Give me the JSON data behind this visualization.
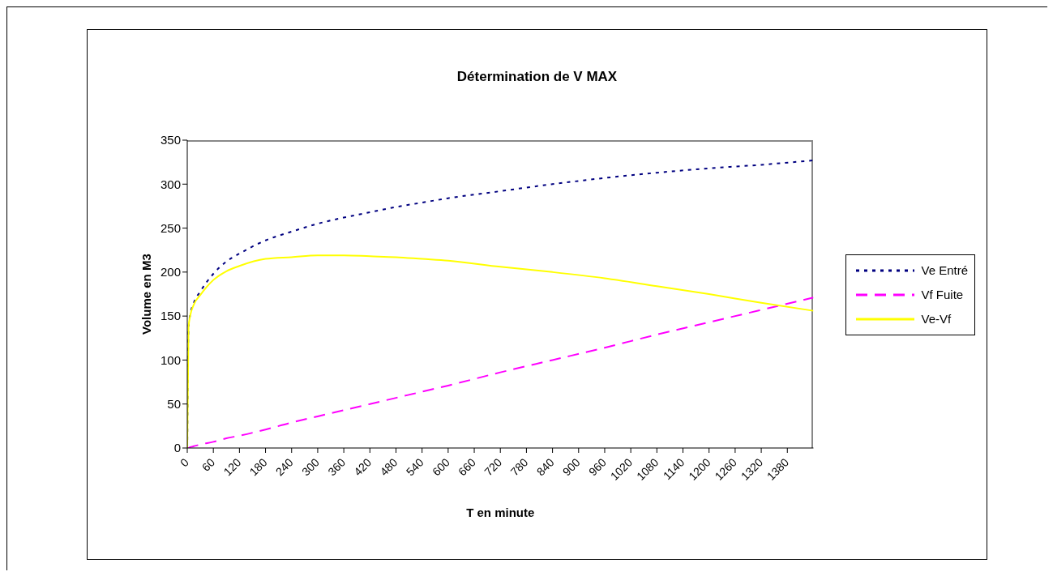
{
  "chart_data": {
    "type": "line",
    "title": "Détermination de V MAX",
    "xlabel": "T en minute",
    "ylabel": "Volume en M3",
    "x": [
      0,
      3,
      7,
      15,
      30,
      60,
      90,
      120,
      180,
      240,
      300,
      360,
      420,
      480,
      540,
      600,
      720,
      840,
      960,
      1080,
      1200,
      1320,
      1440
    ],
    "series": [
      {
        "name": "Ve Entré",
        "color": "#000080",
        "line_style": "dotted",
        "values": [
          0,
          138,
          152,
          165,
          178,
          198,
          212,
          221,
          236,
          246,
          255,
          262,
          268,
          274,
          279,
          284,
          292,
          300,
          307,
          313,
          318,
          322,
          327
        ]
      },
      {
        "name": "Vf Fuite",
        "color": "#ff00ff",
        "line_style": "dashed",
        "values": [
          0,
          0,
          1,
          2,
          4,
          7,
          11,
          14,
          21,
          29,
          36,
          43,
          50,
          57,
          64,
          71,
          86,
          100,
          114,
          129,
          143,
          157,
          171
        ]
      },
      {
        "name": "Ve-Vf",
        "color": "#ffff00",
        "line_style": "solid",
        "values": [
          0,
          138,
          151,
          163,
          174,
          191,
          201,
          207,
          215,
          217,
          219,
          219,
          218,
          217,
          215,
          213,
          206,
          200,
          193,
          184,
          175,
          165,
          156
        ]
      }
    ],
    "xlim": [
      0,
      1440
    ],
    "xticks": [
      0,
      60,
      120,
      180,
      240,
      300,
      360,
      420,
      480,
      540,
      600,
      660,
      720,
      780,
      840,
      900,
      960,
      1020,
      1080,
      1140,
      1200,
      1260,
      1320,
      1380
    ],
    "ylim": [
      0,
      350
    ],
    "yticks": [
      0,
      50,
      100,
      150,
      200,
      250,
      300,
      350
    ],
    "legend": "right",
    "marker": "none"
  }
}
